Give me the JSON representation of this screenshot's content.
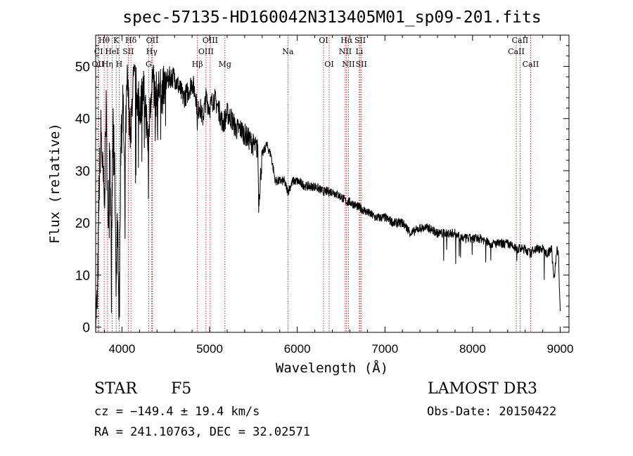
{
  "chart_data": {
    "type": "line",
    "title": "spec-57135-HD160042N313405M01_sp09-201.fits",
    "xlabel": "Wavelength (Å)",
    "ylabel": "Flux (relative)",
    "xlim": [
      3700,
      9100
    ],
    "ylim": [
      -1,
      56
    ],
    "xticks": [
      4000,
      5000,
      6000,
      7000,
      8000,
      9000
    ],
    "yticks": [
      0,
      10,
      20,
      30,
      40,
      50
    ],
    "series": [
      {
        "name": "spectrum",
        "x": [
          3700,
          3720,
          3740,
          3760,
          3780,
          3800,
          3820,
          3840,
          3860,
          3880,
          3900,
          3920,
          3934,
          3950,
          3968,
          3990,
          4010,
          4030,
          4060,
          4080,
          4102,
          4120,
          4150,
          4200,
          4250,
          4300,
          4340,
          4380,
          4420,
          4460,
          4500,
          4550,
          4600,
          4650,
          4700,
          4750,
          4800,
          4850,
          4861,
          4880,
          4920,
          4960,
          5000,
          5050,
          5100,
          5150,
          5180,
          5200,
          5250,
          5300,
          5350,
          5400,
          5450,
          5500,
          5550,
          5560,
          5600,
          5650,
          5700,
          5750,
          5800,
          5850,
          5893,
          5950,
          6000,
          6100,
          6200,
          6300,
          6400,
          6500,
          6563,
          6600,
          6700,
          6800,
          6900,
          7000,
          7100,
          7200,
          7300,
          7400,
          7500,
          7600,
          7700,
          7800,
          7900,
          8000,
          8100,
          8200,
          8300,
          8400,
          8500,
          8542,
          8600,
          8662,
          8700,
          8800,
          8850,
          8900,
          8930,
          8960,
          8980,
          9000
        ],
        "values": [
          2,
          5,
          26,
          38,
          30,
          24,
          42,
          18,
          36,
          15,
          40,
          28,
          8,
          20,
          6,
          38,
          44,
          30,
          47,
          42,
          35,
          46,
          47,
          42,
          46,
          35,
          48,
          44,
          46,
          45,
          47,
          48,
          48,
          46,
          44,
          45,
          47,
          44,
          39,
          43,
          40,
          44,
          42,
          44,
          42,
          39,
          40,
          41,
          40,
          38,
          38,
          37,
          36,
          35,
          34,
          24,
          33,
          35,
          33,
          28,
          28,
          28,
          26,
          28,
          28,
          27,
          27,
          26,
          26,
          25,
          24,
          24,
          23,
          22,
          21,
          21,
          20,
          20,
          18,
          19,
          19,
          18,
          18,
          18,
          17,
          17,
          17,
          16,
          16,
          16,
          15,
          15,
          15,
          14,
          15,
          15,
          14,
          15,
          9,
          15,
          14,
          3
        ]
      }
    ],
    "lines": [
      {
        "label": "Hθ",
        "x": 3797,
        "row": 0,
        "color": "#bb0000"
      },
      {
        "label": "K",
        "x": 3934,
        "row": 0,
        "color": "#bb0000"
      },
      {
        "label": "Hδ",
        "x": 4102,
        "row": 0,
        "color": "#bb0000"
      },
      {
        "label": "OII",
        "x": 4346,
        "row": 0,
        "color": "#bb0000"
      },
      {
        "label": "OIII",
        "x": 5007,
        "row": 0,
        "color": "#bb0000"
      },
      {
        "label": "OI",
        "x": 6300,
        "row": 0,
        "color": "#bb0000"
      },
      {
        "label": "Hα",
        "x": 6563,
        "row": 0,
        "color": "#bb0000"
      },
      {
        "label": "SII",
        "x": 6717,
        "row": 0,
        "color": "#bb0000"
      },
      {
        "label": "CaII",
        "x": 8542,
        "row": 0,
        "color": "#bb0000"
      },
      {
        "label": "CI",
        "x": 3734,
        "row": 1,
        "color": "#bb0000"
      },
      {
        "label": "HeI",
        "x": 3889,
        "row": 1,
        "color": "#bb0000"
      },
      {
        "label": "SII",
        "x": 4072,
        "row": 1,
        "color": "#bb0000"
      },
      {
        "label": "Hγ",
        "x": 4340,
        "row": 1,
        "color": "#bb0000"
      },
      {
        "label": "OIII",
        "x": 4959,
        "row": 1,
        "color": "#bb0000"
      },
      {
        "label": "Na",
        "x": 5893,
        "row": 1,
        "color": "#bb0000"
      },
      {
        "label": "NII",
        "x": 6548,
        "row": 1,
        "color": "#bb0000"
      },
      {
        "label": "Li",
        "x": 6708,
        "row": 1,
        "color": "#bb0000"
      },
      {
        "label": "CaII",
        "x": 8498,
        "row": 1,
        "color": "#bb0000"
      },
      {
        "label": "OII",
        "x": 3727,
        "row": 2,
        "color": "#bb0000"
      },
      {
        "label": "Hη",
        "x": 3835,
        "row": 2,
        "color": "#bb0000"
      },
      {
        "label": "H",
        "x": 3968,
        "row": 2,
        "color": "#bb0000"
      },
      {
        "label": "G",
        "x": 4305,
        "row": 2,
        "color": "#bb0000"
      },
      {
        "label": "Hβ",
        "x": 4861,
        "row": 2,
        "color": "#bb0000"
      },
      {
        "label": "Mg",
        "x": 5175,
        "row": 2,
        "color": "#bb0000"
      },
      {
        "label": "OI",
        "x": 6364,
        "row": 2,
        "color": "#bb0000"
      },
      {
        "label": "NII",
        "x": 6584,
        "row": 2,
        "color": "#bb0000"
      },
      {
        "label": "SII",
        "x": 6731,
        "row": 2,
        "color": "#bb0000"
      },
      {
        "label": "CaII",
        "x": 8662,
        "row": 2,
        "color": "#bb0000"
      }
    ]
  },
  "info": {
    "object_class": "STAR",
    "subclass": "F5",
    "survey": "LAMOST DR3",
    "cz": "cz = −149.4 ± 19.4 km/s",
    "obs_date": "Obs-Date: 20150422",
    "coords": "RA = 241.10763, DEC =  32.02571"
  }
}
